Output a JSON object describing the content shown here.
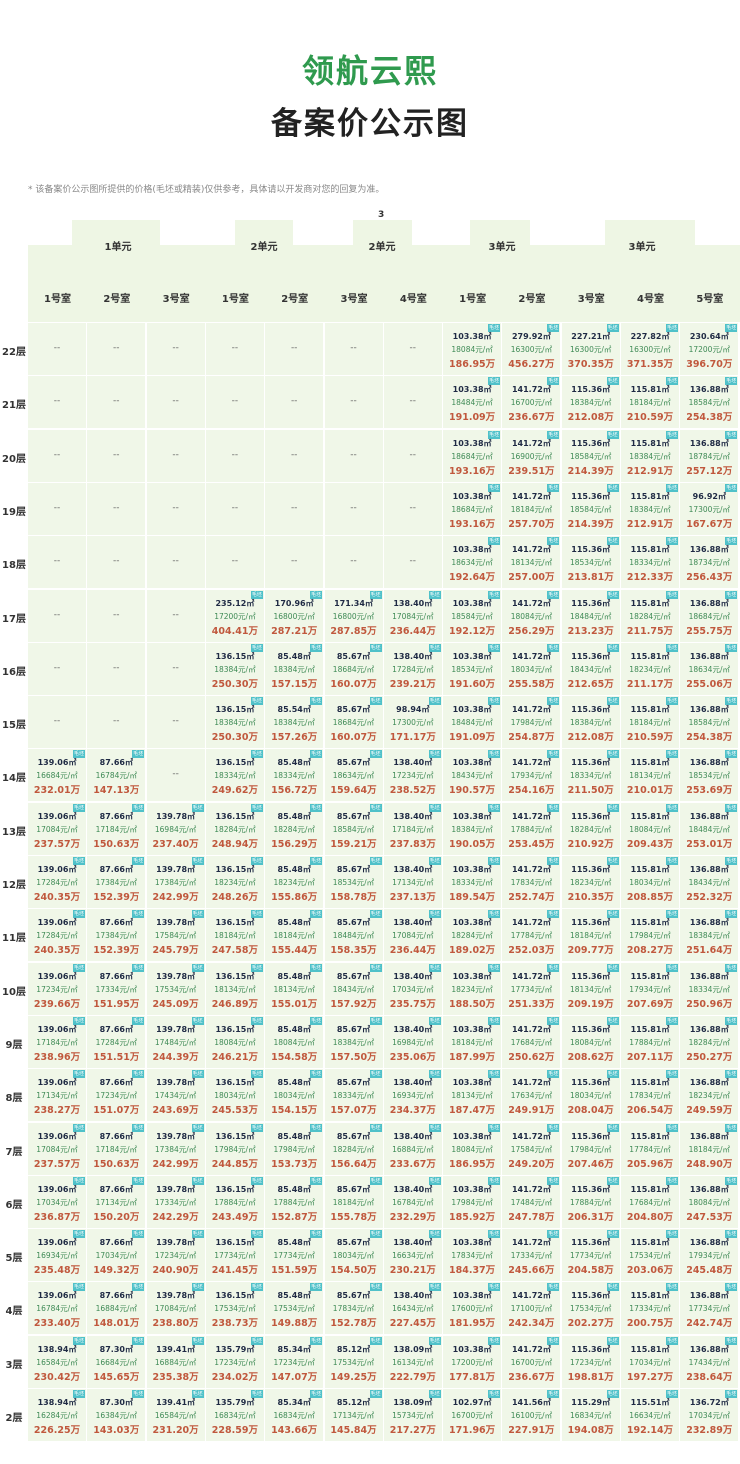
{
  "header": {
    "project": "领航云熙",
    "title": "备案价公示图",
    "note": "* 该备案价公示图所提供的价格(毛坯或精装)仅供参考，具体请以开发商对您的回复为准。",
    "building": "3"
  },
  "groups": [
    "1单元",
    "2单元",
    "2单元",
    "3单元",
    "3单元"
  ],
  "rooms": [
    "1号室",
    "2号室",
    "3号室",
    "1号室",
    "2号室",
    "3号室",
    "4号室",
    "1号室",
    "2号室",
    "3号室",
    "4号室",
    "5号室"
  ],
  "badge": "毛坯",
  "empty": "--",
  "area_unit": "㎡",
  "price_unit": "元/㎡",
  "total_unit": "万",
  "colors": {
    "title": "#2f9a4e",
    "area": "#1f2a44",
    "price": "#3e8a55",
    "total": "#c0583d",
    "badge": "#4fc1c9",
    "cell": "#f0f7e8"
  },
  "rows": [
    {
      "floor": "22层",
      "cells": [
        null,
        null,
        null,
        null,
        null,
        null,
        null,
        [
          "103.38",
          "18084",
          "186.95"
        ],
        [
          "279.92",
          "16300",
          "456.27"
        ],
        [
          "227.21",
          "16300",
          "370.35"
        ],
        [
          "227.82",
          "16300",
          "371.35"
        ],
        [
          "230.64",
          "17200",
          "396.70"
        ]
      ]
    },
    {
      "floor": "21层",
      "cells": [
        null,
        null,
        null,
        null,
        null,
        null,
        null,
        [
          "103.38",
          "18484",
          "191.09"
        ],
        [
          "141.72",
          "16700",
          "236.67"
        ],
        [
          "115.36",
          "18384",
          "212.08"
        ],
        [
          "115.81",
          "18184",
          "210.59"
        ],
        [
          "136.88",
          "18584",
          "254.38"
        ]
      ]
    },
    {
      "floor": "20层",
      "cells": [
        null,
        null,
        null,
        null,
        null,
        null,
        null,
        [
          "103.38",
          "18684",
          "193.16"
        ],
        [
          "141.72",
          "16900",
          "239.51"
        ],
        [
          "115.36",
          "18584",
          "214.39"
        ],
        [
          "115.81",
          "18384",
          "212.91"
        ],
        [
          "136.88",
          "18784",
          "257.12"
        ]
      ]
    },
    {
      "floor": "19层",
      "cells": [
        null,
        null,
        null,
        null,
        null,
        null,
        null,
        [
          "103.38",
          "18684",
          "193.16"
        ],
        [
          "141.72",
          "18184",
          "257.70"
        ],
        [
          "115.36",
          "18584",
          "214.39"
        ],
        [
          "115.81",
          "18384",
          "212.91"
        ],
        [
          "96.92",
          "17300",
          "167.67"
        ]
      ]
    },
    {
      "floor": "18层",
      "cells": [
        null,
        null,
        null,
        null,
        null,
        null,
        null,
        [
          "103.38",
          "18634",
          "192.64"
        ],
        [
          "141.72",
          "18134",
          "257.00"
        ],
        [
          "115.36",
          "18534",
          "213.81"
        ],
        [
          "115.81",
          "18334",
          "212.33"
        ],
        [
          "136.88",
          "18734",
          "256.43"
        ]
      ]
    },
    {
      "floor": "17层",
      "cells": [
        null,
        null,
        null,
        [
          "235.12",
          "17200",
          "404.41"
        ],
        [
          "170.96",
          "16800",
          "287.21"
        ],
        [
          "171.34",
          "16800",
          "287.85"
        ],
        [
          "138.40",
          "17084",
          "236.44"
        ],
        [
          "103.38",
          "18584",
          "192.12"
        ],
        [
          "141.72",
          "18084",
          "256.29"
        ],
        [
          "115.36",
          "18484",
          "213.23"
        ],
        [
          "115.81",
          "18284",
          "211.75"
        ],
        [
          "136.88",
          "18684",
          "255.75"
        ]
      ]
    },
    {
      "floor": "16层",
      "cells": [
        null,
        null,
        null,
        [
          "136.15",
          "18384",
          "250.30"
        ],
        [
          "85.48",
          "18384",
          "157.15"
        ],
        [
          "85.67",
          "18684",
          "160.07"
        ],
        [
          "138.40",
          "17284",
          "239.21"
        ],
        [
          "103.38",
          "18534",
          "191.60"
        ],
        [
          "141.72",
          "18034",
          "255.58"
        ],
        [
          "115.36",
          "18434",
          "212.65"
        ],
        [
          "115.81",
          "18234",
          "211.17"
        ],
        [
          "136.88",
          "18634",
          "255.06"
        ]
      ]
    },
    {
      "floor": "15层",
      "cells": [
        null,
        null,
        null,
        [
          "136.15",
          "18384",
          "250.30"
        ],
        [
          "85.54",
          "18384",
          "157.26"
        ],
        [
          "85.67",
          "18684",
          "160.07"
        ],
        [
          "98.94",
          "17300",
          "171.17"
        ],
        [
          "103.38",
          "18484",
          "191.09"
        ],
        [
          "141.72",
          "17984",
          "254.87"
        ],
        [
          "115.36",
          "18384",
          "212.08"
        ],
        [
          "115.81",
          "18184",
          "210.59"
        ],
        [
          "136.88",
          "18584",
          "254.38"
        ]
      ]
    },
    {
      "floor": "14层",
      "cells": [
        [
          "139.06",
          "16684",
          "232.01"
        ],
        [
          "87.66",
          "16784",
          "147.13"
        ],
        null,
        [
          "136.15",
          "18334",
          "249.62"
        ],
        [
          "85.48",
          "18334",
          "156.72"
        ],
        [
          "85.67",
          "18634",
          "159.64"
        ],
        [
          "138.40",
          "17234",
          "238.52"
        ],
        [
          "103.38",
          "18434",
          "190.57"
        ],
        [
          "141.72",
          "17934",
          "254.16"
        ],
        [
          "115.36",
          "18334",
          "211.50"
        ],
        [
          "115.81",
          "18134",
          "210.01"
        ],
        [
          "136.88",
          "18534",
          "253.69"
        ]
      ]
    },
    {
      "floor": "13层",
      "cells": [
        [
          "139.06",
          "17084",
          "237.57"
        ],
        [
          "87.66",
          "17184",
          "150.63"
        ],
        [
          "139.78",
          "16984",
          "237.40"
        ],
        [
          "136.15",
          "18284",
          "248.94"
        ],
        [
          "85.48",
          "18284",
          "156.29"
        ],
        [
          "85.67",
          "18584",
          "159.21"
        ],
        [
          "138.40",
          "17184",
          "237.83"
        ],
        [
          "103.38",
          "18384",
          "190.05"
        ],
        [
          "141.72",
          "17884",
          "253.45"
        ],
        [
          "115.36",
          "18284",
          "210.92"
        ],
        [
          "115.81",
          "18084",
          "209.43"
        ],
        [
          "136.88",
          "18484",
          "253.01"
        ]
      ]
    },
    {
      "floor": "12层",
      "cells": [
        [
          "139.06",
          "17284",
          "240.35"
        ],
        [
          "87.66",
          "17384",
          "152.39"
        ],
        [
          "139.78",
          "17384",
          "242.99"
        ],
        [
          "136.15",
          "18234",
          "248.26"
        ],
        [
          "85.48",
          "18234",
          "155.86"
        ],
        [
          "85.67",
          "18534",
          "158.78"
        ],
        [
          "138.40",
          "17134",
          "237.13"
        ],
        [
          "103.38",
          "18334",
          "189.54"
        ],
        [
          "141.72",
          "17834",
          "252.74"
        ],
        [
          "115.36",
          "18234",
          "210.35"
        ],
        [
          "115.81",
          "18034",
          "208.85"
        ],
        [
          "136.88",
          "18434",
          "252.32"
        ]
      ]
    },
    {
      "floor": "11层",
      "cells": [
        [
          "139.06",
          "17284",
          "240.35"
        ],
        [
          "87.66",
          "17384",
          "152.39"
        ],
        [
          "139.78",
          "17584",
          "245.79"
        ],
        [
          "136.15",
          "18184",
          "247.58"
        ],
        [
          "85.48",
          "18184",
          "155.44"
        ],
        [
          "85.67",
          "18484",
          "158.35"
        ],
        [
          "138.40",
          "17084",
          "236.44"
        ],
        [
          "103.38",
          "18284",
          "189.02"
        ],
        [
          "141.72",
          "17784",
          "252.03"
        ],
        [
          "115.36",
          "18184",
          "209.77"
        ],
        [
          "115.81",
          "17984",
          "208.27"
        ],
        [
          "136.88",
          "18384",
          "251.64"
        ]
      ]
    },
    {
      "floor": "10层",
      "cells": [
        [
          "139.06",
          "17234",
          "239.66"
        ],
        [
          "87.66",
          "17334",
          "151.95"
        ],
        [
          "139.78",
          "17534",
          "245.09"
        ],
        [
          "136.15",
          "18134",
          "246.89"
        ],
        [
          "85.48",
          "18134",
          "155.01"
        ],
        [
          "85.67",
          "18434",
          "157.92"
        ],
        [
          "138.40",
          "17034",
          "235.75"
        ],
        [
          "103.38",
          "18234",
          "188.50"
        ],
        [
          "141.72",
          "17734",
          "251.33"
        ],
        [
          "115.36",
          "18134",
          "209.19"
        ],
        [
          "115.81",
          "17934",
          "207.69"
        ],
        [
          "136.88",
          "18334",
          "250.96"
        ]
      ]
    },
    {
      "floor": "9层",
      "cells": [
        [
          "139.06",
          "17184",
          "238.96"
        ],
        [
          "87.66",
          "17284",
          "151.51"
        ],
        [
          "139.78",
          "17484",
          "244.39"
        ],
        [
          "136.15",
          "18084",
          "246.21"
        ],
        [
          "85.48",
          "18084",
          "154.58"
        ],
        [
          "85.67",
          "18384",
          "157.50"
        ],
        [
          "138.40",
          "16984",
          "235.06"
        ],
        [
          "103.38",
          "18184",
          "187.99"
        ],
        [
          "141.72",
          "17684",
          "250.62"
        ],
        [
          "115.36",
          "18084",
          "208.62"
        ],
        [
          "115.81",
          "17884",
          "207.11"
        ],
        [
          "136.88",
          "18284",
          "250.27"
        ]
      ]
    },
    {
      "floor": "8层",
      "cells": [
        [
          "139.06",
          "17134",
          "238.27"
        ],
        [
          "87.66",
          "17234",
          "151.07"
        ],
        [
          "139.78",
          "17434",
          "243.69"
        ],
        [
          "136.15",
          "18034",
          "245.53"
        ],
        [
          "85.48",
          "18034",
          "154.15"
        ],
        [
          "85.67",
          "18334",
          "157.07"
        ],
        [
          "138.40",
          "16934",
          "234.37"
        ],
        [
          "103.38",
          "18134",
          "187.47"
        ],
        [
          "141.72",
          "17634",
          "249.91"
        ],
        [
          "115.36",
          "18034",
          "208.04"
        ],
        [
          "115.81",
          "17834",
          "206.54"
        ],
        [
          "136.88",
          "18234",
          "249.59"
        ]
      ]
    },
    {
      "floor": "7层",
      "cells": [
        [
          "139.06",
          "17084",
          "237.57"
        ],
        [
          "87.66",
          "17184",
          "150.63"
        ],
        [
          "139.78",
          "17384",
          "242.99"
        ],
        [
          "136.15",
          "17984",
          "244.85"
        ],
        [
          "85.48",
          "17984",
          "153.73"
        ],
        [
          "85.67",
          "18284",
          "156.64"
        ],
        [
          "138.40",
          "16884",
          "233.67"
        ],
        [
          "103.38",
          "18084",
          "186.95"
        ],
        [
          "141.72",
          "17584",
          "249.20"
        ],
        [
          "115.36",
          "17984",
          "207.46"
        ],
        [
          "115.81",
          "17784",
          "205.96"
        ],
        [
          "136.88",
          "18184",
          "248.90"
        ]
      ]
    },
    {
      "floor": "6层",
      "cells": [
        [
          "139.06",
          "17034",
          "236.87"
        ],
        [
          "87.66",
          "17134",
          "150.20"
        ],
        [
          "139.78",
          "17334",
          "242.29"
        ],
        [
          "136.15",
          "17884",
          "243.49"
        ],
        [
          "85.48",
          "17884",
          "152.87"
        ],
        [
          "85.67",
          "18184",
          "155.78"
        ],
        [
          "138.40",
          "16784",
          "232.29"
        ],
        [
          "103.38",
          "17984",
          "185.92"
        ],
        [
          "141.72",
          "17484",
          "247.78"
        ],
        [
          "115.36",
          "17884",
          "206.31"
        ],
        [
          "115.81",
          "17684",
          "204.80"
        ],
        [
          "136.88",
          "18084",
          "247.53"
        ]
      ]
    },
    {
      "floor": "5层",
      "cells": [
        [
          "139.06",
          "16934",
          "235.48"
        ],
        [
          "87.66",
          "17034",
          "149.32"
        ],
        [
          "139.78",
          "17234",
          "240.90"
        ],
        [
          "136.15",
          "17734",
          "241.45"
        ],
        [
          "85.48",
          "17734",
          "151.59"
        ],
        [
          "85.67",
          "18034",
          "154.50"
        ],
        [
          "138.40",
          "16634",
          "230.21"
        ],
        [
          "103.38",
          "17834",
          "184.37"
        ],
        [
          "141.72",
          "17334",
          "245.66"
        ],
        [
          "115.36",
          "17734",
          "204.58"
        ],
        [
          "115.81",
          "17534",
          "203.06"
        ],
        [
          "136.88",
          "17934",
          "245.48"
        ]
      ]
    },
    {
      "floor": "4层",
      "cells": [
        [
          "139.06",
          "16784",
          "233.40"
        ],
        [
          "87.66",
          "16884",
          "148.01"
        ],
        [
          "139.78",
          "17084",
          "238.80"
        ],
        [
          "136.15",
          "17534",
          "238.73"
        ],
        [
          "85.48",
          "17534",
          "149.88"
        ],
        [
          "85.67",
          "17834",
          "152.78"
        ],
        [
          "138.40",
          "16434",
          "227.45"
        ],
        [
          "103.38",
          "17600",
          "181.95"
        ],
        [
          "141.72",
          "17100",
          "242.34"
        ],
        [
          "115.36",
          "17534",
          "202.27"
        ],
        [
          "115.81",
          "17334",
          "200.75"
        ],
        [
          "136.88",
          "17734",
          "242.74"
        ]
      ]
    },
    {
      "floor": "3层",
      "cells": [
        [
          "138.94",
          "16584",
          "230.42"
        ],
        [
          "87.30",
          "16684",
          "145.65"
        ],
        [
          "139.41",
          "16884",
          "235.38"
        ],
        [
          "135.79",
          "17234",
          "234.02"
        ],
        [
          "85.34",
          "17234",
          "147.07"
        ],
        [
          "85.12",
          "17534",
          "149.25"
        ],
        [
          "138.09",
          "16134",
          "222.79"
        ],
        [
          "103.38",
          "17200",
          "177.81"
        ],
        [
          "141.72",
          "16700",
          "236.67"
        ],
        [
          "115.36",
          "17234",
          "198.81"
        ],
        [
          "115.81",
          "17034",
          "197.27"
        ],
        [
          "136.88",
          "17434",
          "238.64"
        ]
      ]
    },
    {
      "floor": "2层",
      "cells": [
        [
          "138.94",
          "16284",
          "226.25"
        ],
        [
          "87.30",
          "16384",
          "143.03"
        ],
        [
          "139.41",
          "16584",
          "231.20"
        ],
        [
          "135.79",
          "16834",
          "228.59"
        ],
        [
          "85.34",
          "16834",
          "143.66"
        ],
        [
          "85.12",
          "17134",
          "145.84"
        ],
        [
          "138.09",
          "15734",
          "217.27"
        ],
        [
          "102.97",
          "16700",
          "171.96"
        ],
        [
          "141.56",
          "16100",
          "227.91"
        ],
        [
          "115.29",
          "16834",
          "194.08"
        ],
        [
          "115.51",
          "16634",
          "192.14"
        ],
        [
          "136.72",
          "17034",
          "232.89"
        ]
      ]
    }
  ]
}
